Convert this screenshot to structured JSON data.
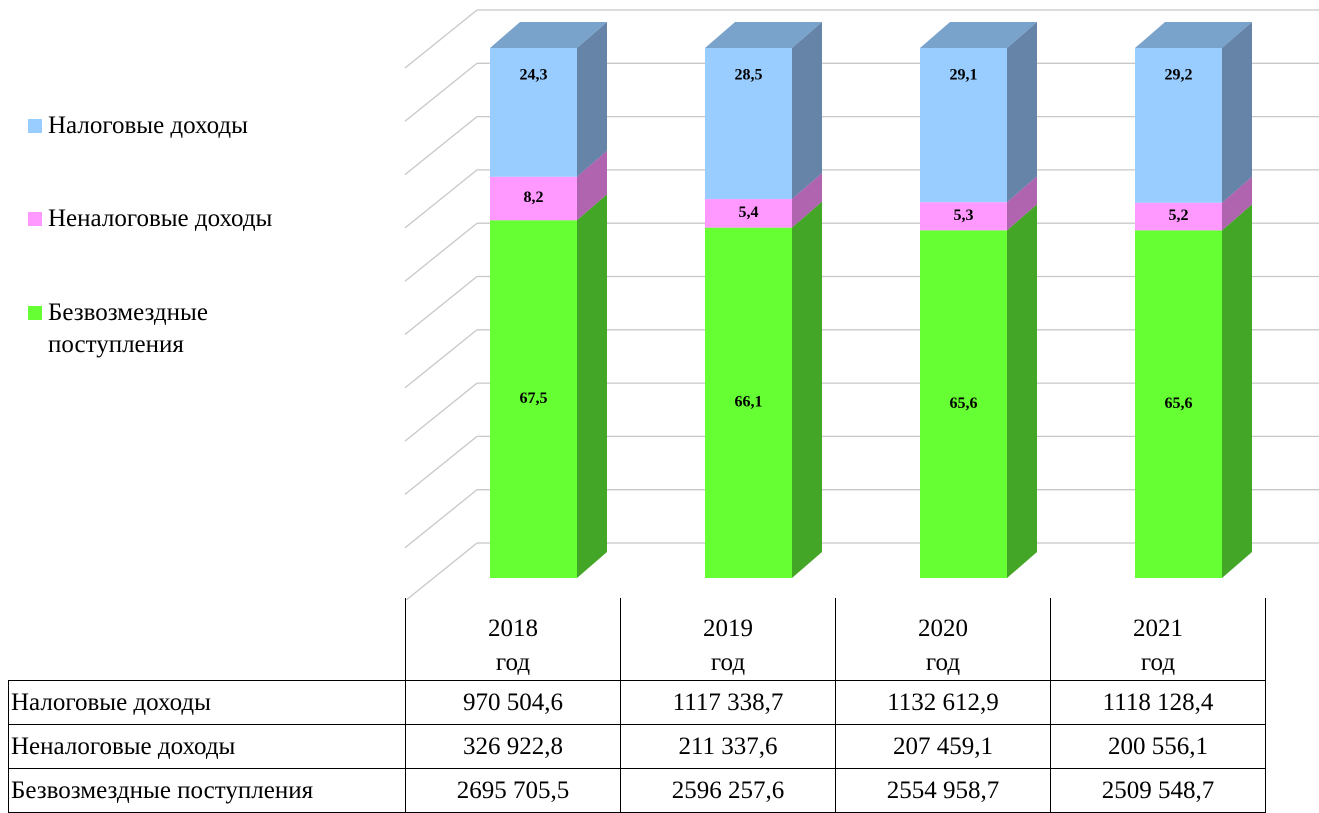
{
  "chart_data": {
    "type": "bar3d_stacked",
    "categories": [
      "2018 год",
      "2019 год",
      "2020 год",
      "2021 год"
    ],
    "ylim": [
      0,
      100
    ],
    "yticks": [
      0,
      10,
      20,
      30,
      40,
      50,
      60,
      70,
      80,
      90,
      100
    ],
    "grid": true,
    "series": [
      {
        "name": "Безвозмездные поступления",
        "color": "#66ff33",
        "side_color": "#44a626",
        "top_color": "#55cc2a",
        "values": [
          67.5,
          66.1,
          65.6,
          65.6
        ],
        "value_labels": [
          "67,5",
          "66,1",
          "65,6",
          "65,6"
        ],
        "amounts": [
          2695705.5,
          2596257.6,
          2554958.7,
          2509548.7
        ],
        "amount_labels": [
          "2695 705,5",
          "2596 257,6",
          "2554 958,7",
          "2509 548,7"
        ]
      },
      {
        "name": "Неналоговые доходы",
        "color": "#ff99ff",
        "side_color": "#b064b0",
        "top_color": "#d980d9",
        "values": [
          8.2,
          5.4,
          5.3,
          5.2
        ],
        "value_labels": [
          "8,2",
          "5,4",
          "5,3",
          "5,2"
        ],
        "amounts": [
          326922.8,
          211337.6,
          207459.1,
          200556.1
        ],
        "amount_labels": [
          "326 922,8",
          "211 337,6",
          "207 459,1",
          "200 556,1"
        ]
      },
      {
        "name": "Налоговые доходы",
        "color": "#99ccff",
        "side_color": "#6684a8",
        "top_color": "#7aa3cc",
        "values": [
          24.3,
          28.5,
          29.1,
          29.2
        ],
        "value_labels": [
          "24,3",
          "28,5",
          "29,1",
          "29,2"
        ],
        "amounts": [
          970504.6,
          1117338.7,
          1132612.9,
          1118128.4
        ],
        "amount_labels": [
          "970 504,6",
          "1117 338,7",
          "1132 612,9",
          "1118 128,4"
        ]
      }
    ]
  }
}
